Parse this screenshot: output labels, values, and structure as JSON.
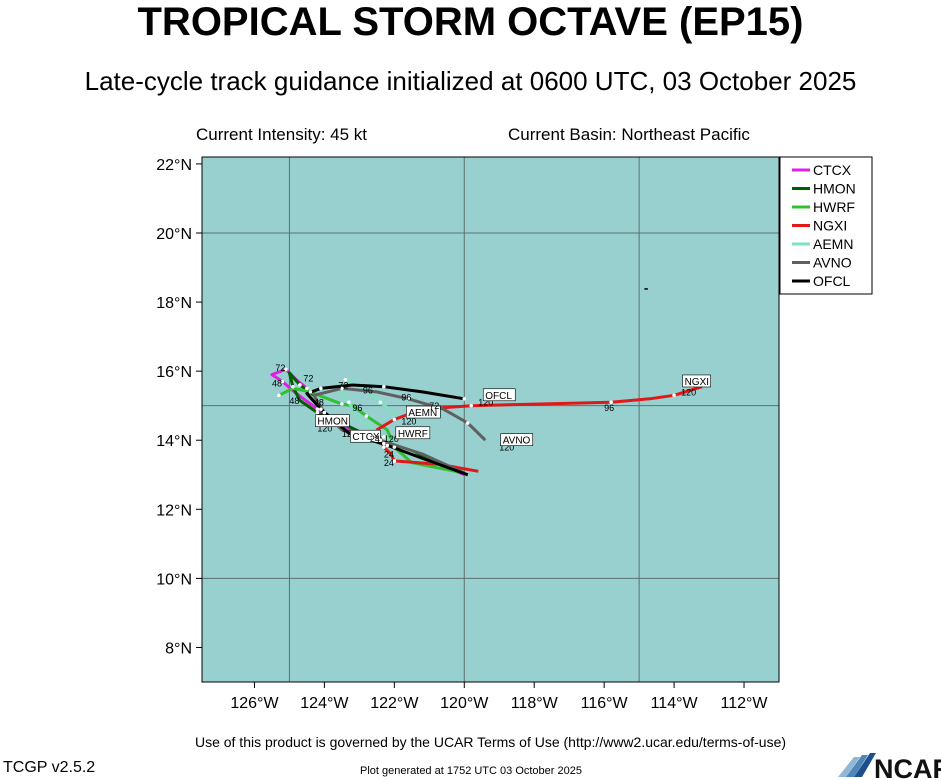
{
  "header": {
    "title": "TROPICAL STORM OCTAVE (EP15)",
    "subtitle": "Late-cycle track guidance initialized at 0600 UTC, 03 October 2025"
  },
  "info": {
    "intensity": "Current Intensity: 45 kt",
    "basin": "Current Basin: Northeast Pacific"
  },
  "footer": {
    "terms": "Use of this product is governed by the UCAR Terms of Use (http://www2.ucar.edu/terms-of-use)",
    "version": "TCGP v2.5.2",
    "generated": "Plot generated at 1752 UTC   03 October 2025",
    "logo_text": "NCAR"
  },
  "colors": {
    "ocean": "#98cfcf",
    "grid": "#5f6f6f"
  },
  "chart_data": {
    "type": "line",
    "map": "track map",
    "xlim": [
      -127.5,
      -111.0
    ],
    "ylim": [
      7.0,
      22.2
    ],
    "x_ticks": [
      -126,
      -124,
      -122,
      -120,
      -118,
      -116,
      -114,
      -112
    ],
    "x_tick_labels": [
      "126°W",
      "124°W",
      "122°W",
      "120°W",
      "118°W",
      "116°W",
      "114°W",
      "112°W"
    ],
    "y_ticks": [
      8,
      10,
      12,
      14,
      16,
      18,
      20,
      22
    ],
    "y_tick_labels": [
      "8°N",
      "10°N",
      "12°N",
      "14°N",
      "16°N",
      "18°N",
      "20°N",
      "22°N"
    ],
    "grid_lon": [
      -125,
      -120,
      -115
    ],
    "grid_lat": [
      10,
      15,
      20
    ],
    "legend_position": "top-right",
    "series": [
      {
        "name": "CTCX",
        "color": "#e020e0",
        "points": [
          [
            -120.0,
            13.0
          ],
          [
            -121.0,
            13.45
          ],
          [
            -122.3,
            13.9
          ],
          [
            -123.3,
            14.3
          ],
          [
            -124.2,
            14.9
          ],
          [
            -124.8,
            15.35
          ],
          [
            -125.2,
            15.7
          ],
          [
            -125.5,
            15.9
          ],
          [
            -125.1,
            16.05
          ],
          [
            -124.8,
            15.75
          ],
          [
            -124.5,
            15.5
          ]
        ],
        "hour_labels": [
          {
            "text": "120",
            "lon": -123.5,
            "lat": 14.1
          }
        ],
        "tag": {
          "text": "CTCX",
          "lon": -123.2,
          "lat": 14.0
        }
      },
      {
        "name": "HMON",
        "color": "#006000",
        "points": [
          [
            -120.0,
            13.05
          ],
          [
            -121.3,
            13.55
          ],
          [
            -122.6,
            14.05
          ],
          [
            -123.5,
            14.5
          ],
          [
            -124.2,
            14.8
          ],
          [
            -124.7,
            15.15
          ],
          [
            -124.9,
            15.55
          ],
          [
            -125.0,
            15.95
          ],
          [
            -124.7,
            15.6
          ],
          [
            -124.3,
            15.3
          ]
        ],
        "hour_labels": [
          {
            "text": "120",
            "lon": -124.2,
            "lat": 14.25
          }
        ],
        "tag": {
          "text": "HMON",
          "lon": -124.2,
          "lat": 14.45
        }
      },
      {
        "name": "HWRF",
        "color": "#30c030",
        "points": [
          [
            -120.0,
            13.05
          ],
          [
            -121.5,
            13.35
          ],
          [
            -122.0,
            13.8
          ],
          [
            -122.2,
            14.3
          ],
          [
            -122.8,
            14.7
          ],
          [
            -123.2,
            15.0
          ],
          [
            -123.5,
            15.05
          ],
          [
            -123.9,
            15.2
          ],
          [
            -124.4,
            15.4
          ],
          [
            -124.9,
            15.5
          ],
          [
            -125.3,
            15.3
          ]
        ],
        "hour_labels": [
          {
            "text": "120",
            "lon": -122.3,
            "lat": 13.95
          }
        ],
        "tag": {
          "text": "HWRF",
          "lon": -121.9,
          "lat": 14.1
        }
      },
      {
        "name": "NGXI",
        "color": "#e01818",
        "points": [
          [
            -119.6,
            13.1
          ],
          [
            -120.7,
            13.3
          ],
          [
            -122.0,
            13.4
          ],
          [
            -122.1,
            13.6
          ],
          [
            -122.3,
            13.8
          ],
          [
            -122.5,
            14.3
          ],
          [
            -122.0,
            14.6
          ],
          [
            -121.2,
            14.9
          ],
          [
            -119.8,
            15.0
          ],
          [
            -117.8,
            15.05
          ],
          [
            -115.8,
            15.1
          ],
          [
            -114.7,
            15.2
          ],
          [
            -114.0,
            15.3
          ],
          [
            -113.2,
            15.55
          ]
        ],
        "hour_labels": [
          {
            "text": "24",
            "lon": -122.3,
            "lat": 13.5
          },
          {
            "text": "96",
            "lon": -116.0,
            "lat": 14.85
          },
          {
            "text": "120",
            "lon": -113.8,
            "lat": 15.3
          }
        ],
        "tag": {
          "text": "NGXI",
          "lon": -113.7,
          "lat": 15.6
        }
      },
      {
        "name": "AEMN",
        "color": "#80e0c0",
        "points": [
          [
            -120.0,
            13.05
          ],
          [
            -121.3,
            13.5
          ],
          [
            -122.3,
            14.1
          ],
          [
            -123.0,
            14.6
          ],
          [
            -123.3,
            15.1
          ],
          [
            -123.6,
            15.5
          ],
          [
            -123.4,
            15.75
          ],
          [
            -122.9,
            15.5
          ],
          [
            -122.4,
            15.1
          ],
          [
            -121.9,
            14.7
          ]
        ],
        "hour_labels": [
          {
            "text": "120",
            "lon": -121.8,
            "lat": 14.45
          }
        ],
        "tag": {
          "text": "AEMN",
          "lon": -121.6,
          "lat": 14.7
        }
      },
      {
        "name": "AVNO",
        "color": "#606060",
        "points": [
          [
            -120.0,
            13.05
          ],
          [
            -121.2,
            13.6
          ],
          [
            -122.4,
            14.0
          ],
          [
            -123.5,
            14.3
          ],
          [
            -124.0,
            14.8
          ],
          [
            -124.3,
            15.3
          ],
          [
            -123.5,
            15.5
          ],
          [
            -122.5,
            15.4
          ],
          [
            -121.6,
            15.2
          ],
          [
            -120.6,
            14.9
          ],
          [
            -119.9,
            14.5
          ],
          [
            -119.4,
            14.0
          ]
        ],
        "hour_labels": [
          {
            "text": "96",
            "lon": -121.8,
            "lat": 15.15
          },
          {
            "text": "120",
            "lon": -119.0,
            "lat": 13.7
          }
        ],
        "tag": {
          "text": "AVNO",
          "lon": -118.9,
          "lat": 13.9
        }
      },
      {
        "name": "OFCL",
        "color": "#000000",
        "points": [
          [
            -119.9,
            13.0
          ],
          [
            -121.0,
            13.4
          ],
          [
            -122.2,
            13.85
          ],
          [
            -123.3,
            14.2
          ],
          [
            -124.1,
            14.9
          ],
          [
            -124.5,
            15.35
          ],
          [
            -124.1,
            15.5
          ],
          [
            -123.2,
            15.6
          ],
          [
            -122.3,
            15.55
          ],
          [
            -121.2,
            15.4
          ],
          [
            -120.0,
            15.2
          ]
        ],
        "hour_labels": [
          {
            "text": "120",
            "lon": -119.6,
            "lat": 15.0
          }
        ],
        "tag": {
          "text": "OFCL",
          "lon": -119.4,
          "lat": 15.2
        }
      }
    ],
    "extra_labels": [
      {
        "text": "72",
        "lon": -125.4,
        "lat": 16.0
      },
      {
        "text": "48",
        "lon": -125.5,
        "lat": 15.55
      },
      {
        "text": "48",
        "lon": -125.0,
        "lat": 15.05
      },
      {
        "text": "72",
        "lon": -124.6,
        "lat": 15.7
      },
      {
        "text": "72",
        "lon": -123.6,
        "lat": 15.5
      },
      {
        "text": "96",
        "lon": -122.9,
        "lat": 15.35
      },
      {
        "text": "96",
        "lon": -123.2,
        "lat": 14.85
      },
      {
        "text": "24",
        "lon": -122.7,
        "lat": 13.95
      },
      {
        "text": "24",
        "lon": -122.3,
        "lat": 13.25
      },
      {
        "text": "48",
        "lon": -124.3,
        "lat": 15.0
      },
      {
        "text": "72",
        "lon": -121.0,
        "lat": 14.9
      }
    ]
  }
}
